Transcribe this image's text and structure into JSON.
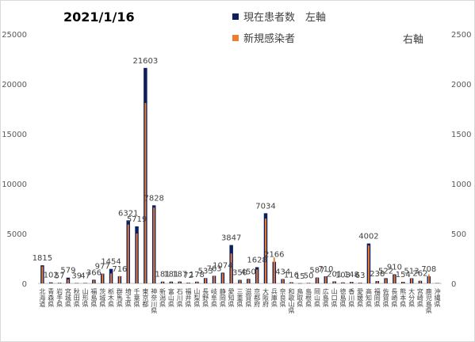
{
  "chart_data": {
    "type": "bar",
    "title": "2021/1/16",
    "y_left_lim": [
      0,
      25000
    ],
    "y_left_ticks": [
      "0",
      "5000",
      "10000",
      "15000",
      "20000",
      "25000"
    ],
    "y_right_lim": [
      0,
      2500
    ],
    "y_right_ticks": [
      "0",
      "500",
      "1000",
      "1500",
      "2000",
      "2500"
    ],
    "legend_right_axis_note": "右軸",
    "grid": false,
    "categories": [
      "北海道",
      "青森県",
      "岩手県",
      "宮城県",
      "秋田県",
      "山形県",
      "福島県",
      "茨城県",
      "栃木県",
      "群馬県",
      "埼玉県",
      "千葉県",
      "東京都",
      "神奈川県",
      "新潟県",
      "富山県",
      "石川県",
      "福井県",
      "山梨県",
      "長野県",
      "岐阜県",
      "静岡県",
      "愛知県",
      "三重県",
      "滋賀県",
      "京都府",
      "大阪府",
      "兵庫県",
      "奈良県",
      "和歌山県",
      "鳥取県",
      "島根県",
      "岡山県",
      "広島県",
      "山口県",
      "徳島県",
      "香川県",
      "愛媛県",
      "高知県",
      "福岡県",
      "佐賀県",
      "長崎県",
      "熊本県",
      "大分県",
      "宮崎県",
      "鹿児島県",
      "沖縄県"
    ],
    "series": [
      {
        "name": "現在患者数　左軸",
        "color": "#0d1f5c",
        "axis": "left",
        "values": [
          1815,
          102,
          57,
          579,
          39,
          47,
          366,
          977,
          1454,
          716,
          6321,
          5719,
          21603,
          7828,
          181,
          181,
          187,
          72,
          178,
          533,
          763,
          1074,
          3847,
          350,
          450,
          1628,
          7034,
          2166,
          434,
          116,
          15,
          50,
          587,
          710,
          201,
          103,
          148,
          63,
          4002,
          238,
          522,
          910,
          154,
          513,
          262,
          708,
          40
        ],
        "labels": [
          "1815",
          "102",
          "57",
          "579",
          "39",
          "47",
          "366",
          "977",
          "1454",
          "716",
          "6321",
          "5719",
          "21603",
          "7828",
          "181",
          "181",
          "187",
          "72",
          "178",
          "533",
          "763",
          "1074",
          "3847",
          "350",
          "450",
          "1628",
          "7034",
          "2166",
          "434",
          "116",
          "15",
          "50",
          "587",
          "710",
          "201",
          "103",
          "148",
          "63",
          "4002",
          "238",
          "522",
          "910",
          "154",
          "513",
          "262",
          "708",
          ""
        ]
      },
      {
        "name": "新規感染者",
        "color": "#ed7d31",
        "axis": "right",
        "values": [
          170,
          5,
          4,
          40,
          3,
          4,
          30,
          95,
          100,
          75,
          590,
          500,
          1809,
          760,
          15,
          14,
          15,
          6,
          16,
          50,
          75,
          100,
          300,
          30,
          40,
          140,
          650,
          260,
          40,
          10,
          1,
          5,
          55,
          68,
          18,
          10,
          13,
          6,
          380,
          22,
          45,
          85,
          13,
          48,
          25,
          90,
          3
        ]
      }
    ]
  }
}
